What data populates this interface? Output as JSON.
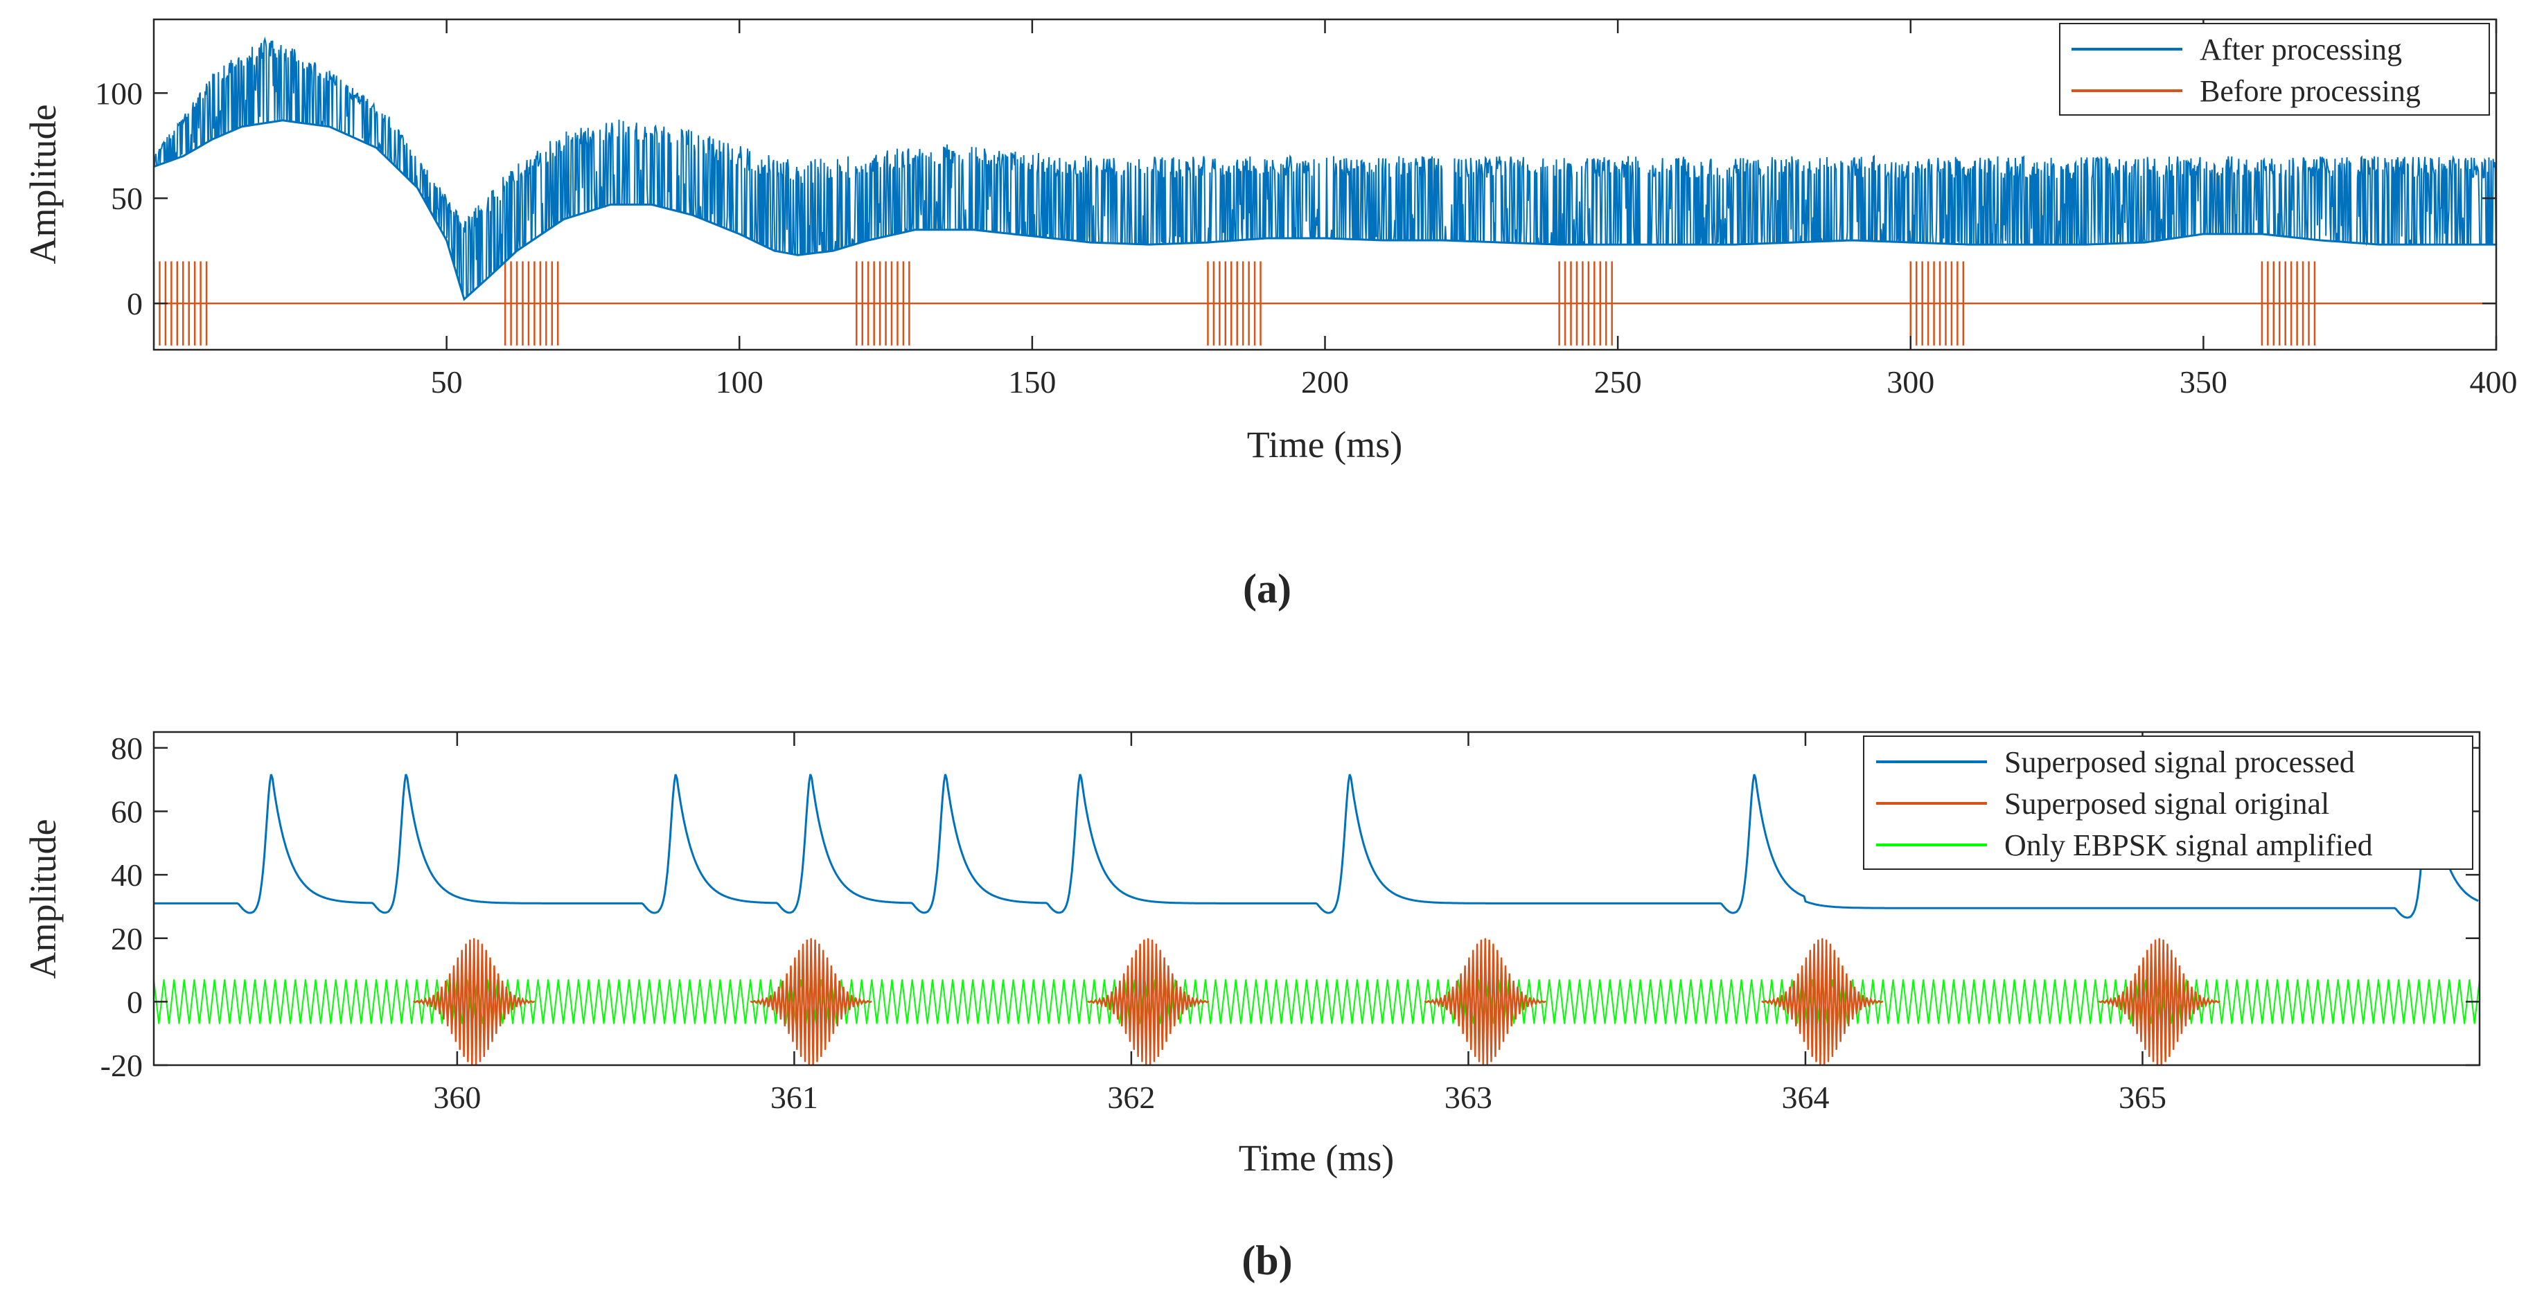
{
  "chart_data": [
    {
      "type": "line",
      "panel_label": "(a)",
      "xlabel": "Time (ms)",
      "ylabel": "Amplitude",
      "xlim": [
        0,
        400
      ],
      "ylim": [
        -22,
        135
      ],
      "xticks": [
        50,
        100,
        150,
        200,
        250,
        300,
        350,
        400
      ],
      "yticks": [
        0,
        50,
        100
      ],
      "legend_position": "top-right",
      "series": [
        {
          "name": "After processing",
          "color": "#0072BD",
          "style": "dense spikes riding on a slow envelope",
          "envelope": [
            [
              0,
              65
            ],
            [
              5,
              70
            ],
            [
              10,
              78
            ],
            [
              15,
              84
            ],
            [
              22,
              87
            ],
            [
              30,
              84
            ],
            [
              38,
              74
            ],
            [
              45,
              55
            ],
            [
              50,
              30
            ],
            [
              53,
              2
            ],
            [
              57,
              12
            ],
            [
              62,
              25
            ],
            [
              70,
              40
            ],
            [
              78,
              47
            ],
            [
              85,
              47
            ],
            [
              92,
              42
            ],
            [
              100,
              33
            ],
            [
              106,
              25
            ],
            [
              110,
              23
            ],
            [
              116,
              25
            ],
            [
              122,
              30
            ],
            [
              130,
              35
            ],
            [
              140,
              35
            ],
            [
              150,
              32
            ],
            [
              160,
              29
            ],
            [
              170,
              28
            ],
            [
              180,
              29
            ],
            [
              190,
              31
            ],
            [
              200,
              31
            ],
            [
              210,
              30
            ],
            [
              220,
              30
            ],
            [
              230,
              29
            ],
            [
              240,
              28
            ],
            [
              250,
              28
            ],
            [
              260,
              28
            ],
            [
              270,
              28
            ],
            [
              280,
              29
            ],
            [
              290,
              30
            ],
            [
              300,
              29
            ],
            [
              310,
              28
            ],
            [
              320,
              28
            ],
            [
              330,
              28
            ],
            [
              340,
              29
            ],
            [
              350,
              33
            ],
            [
              360,
              33
            ],
            [
              370,
              30
            ],
            [
              380,
              28
            ],
            [
              390,
              28
            ],
            [
              400,
              28
            ]
          ],
          "peaks": [
            [
              0,
              70
            ],
            [
              10,
              110
            ],
            [
              20,
              128
            ],
            [
              28,
              115
            ],
            [
              40,
              90
            ],
            [
              45,
              70
            ],
            [
              53,
              40
            ],
            [
              60,
              62
            ],
            [
              70,
              82
            ],
            [
              80,
              88
            ],
            [
              90,
              84
            ],
            [
              100,
              75
            ],
            [
              110,
              68
            ],
            [
              118,
              70
            ],
            [
              125,
              73
            ],
            [
              135,
              76
            ],
            [
              150,
              72
            ],
            [
              160,
              70
            ],
            [
              200,
              70
            ],
            [
              400,
              70
            ]
          ]
        },
        {
          "name": "Before processing",
          "color": "#D95319",
          "style": "flat line with short oscillation bursts",
          "baseline": 0,
          "burst_amplitude": 20,
          "bursts_ms": [
            [
              0,
              9
            ],
            [
              60,
              69
            ],
            [
              120,
              129
            ],
            [
              180,
              189
            ],
            [
              240,
              249
            ],
            [
              300,
              309
            ],
            [
              360,
              369
            ]
          ]
        }
      ]
    },
    {
      "type": "line",
      "panel_label": "(b)",
      "xlabel": "Time (ms)",
      "ylabel": "Amplitude",
      "xlim": [
        359.1,
        366
      ],
      "ylim": [
        -20,
        85
      ],
      "xticks": [
        360,
        361,
        362,
        363,
        364,
        365
      ],
      "yticks": [
        -20,
        0,
        20,
        40,
        60,
        80
      ],
      "legend_position": "top-right",
      "series": [
        {
          "name": "Superposed signal processed",
          "color": "#0072BD",
          "baseline": 31,
          "late_baseline": 29.5,
          "pulse_peak": 72,
          "pulse_times_ms": [
            359.45,
            359.85,
            360.65,
            361.05,
            361.45,
            361.85,
            362.65,
            363.85,
            365.85
          ]
        },
        {
          "name": "Superposed signal original",
          "color": "#D95319",
          "burst_amplitude": 20,
          "burst_centers_ms": [
            360.05,
            361.05,
            362.05,
            363.05,
            364.05,
            365.05
          ]
        },
        {
          "name": "Only EBPSK signal amplified",
          "color": "#00FF00",
          "amplitude": 7,
          "cycle_ms": 0.03
        }
      ]
    }
  ]
}
